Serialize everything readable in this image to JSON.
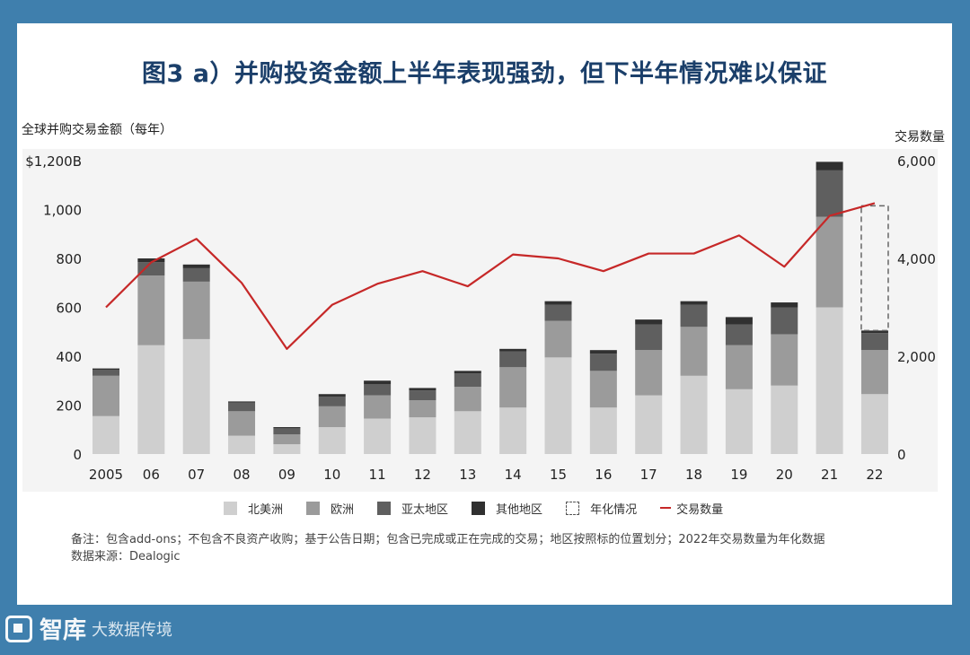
{
  "title": "图3 a）并购投资金额上半年表现强劲，但下半年情况难以保证",
  "left_axis_label": "全球并购交易金额（每年）",
  "right_axis_label": "交易数量",
  "legend": {
    "north_america": "北美洲",
    "europe": "欧洲",
    "apac": "亚太地区",
    "other": "其他地区",
    "annualized": "年化情况",
    "deal_count": "交易数量"
  },
  "notes": {
    "line1": "备注：包含add-ons；不包含不良资产收购；基于公告日期；包含已完成或正在完成的交易；地区按照标的位置划分；2022年交易数量为年化数据",
    "line2": "数据来源：Dealogic"
  },
  "watermark": {
    "brand": "智库",
    "sub": "大数据传境"
  },
  "colors": {
    "north_america": "#cfcfcf",
    "europe": "#9b9b9b",
    "apac": "#5f5f5f",
    "other": "#303030",
    "line": "#c62828",
    "title": "#1b3f6a"
  },
  "chart_data": {
    "type": "bar",
    "stacked": true,
    "categories": [
      "2005",
      "06",
      "07",
      "08",
      "09",
      "10",
      "11",
      "12",
      "13",
      "14",
      "15",
      "16",
      "17",
      "18",
      "19",
      "20",
      "21",
      "22"
    ],
    "series": [
      {
        "name": "北美洲",
        "values": [
          155,
          445,
          470,
          75,
          40,
          110,
          145,
          150,
          175,
          190,
          395,
          190,
          240,
          320,
          265,
          280,
          600,
          245
        ]
      },
      {
        "name": "欧洲",
        "values": [
          165,
          285,
          235,
          100,
          40,
          85,
          95,
          70,
          100,
          165,
          150,
          150,
          185,
          200,
          180,
          210,
          370,
          180
        ]
      },
      {
        "name": "亚太地区",
        "values": [
          25,
          55,
          55,
          35,
          25,
          40,
          45,
          40,
          55,
          65,
          65,
          70,
          105,
          90,
          85,
          110,
          190,
          70
        ]
      },
      {
        "name": "其他地区",
        "values": [
          5,
          15,
          15,
          5,
          5,
          10,
          15,
          10,
          10,
          10,
          15,
          15,
          20,
          15,
          30,
          20,
          35,
          10
        ]
      }
    ],
    "annualized_total_2022": 1015,
    "line": {
      "name": "交易数量",
      "axis": "right",
      "values": [
        3000,
        3920,
        4400,
        3500,
        2150,
        3050,
        3480,
        3740,
        3430,
        4080,
        4000,
        3740,
        4100,
        4100,
        4470,
        3830,
        4870,
        5130
      ]
    },
    "left_axis": {
      "ylim": [
        0,
        1200
      ],
      "ticks": [
        0,
        200,
        400,
        600,
        800,
        1000,
        1200
      ],
      "tick_labels": [
        "0",
        "200",
        "400",
        "600",
        "800",
        "1,000",
        "$1,200B"
      ]
    },
    "right_axis": {
      "ylim": [
        0,
        6000
      ],
      "ticks": [
        0,
        2000,
        4000,
        6000
      ],
      "tick_labels": [
        "0",
        "2,000",
        "4,000",
        "6,000"
      ]
    }
  }
}
